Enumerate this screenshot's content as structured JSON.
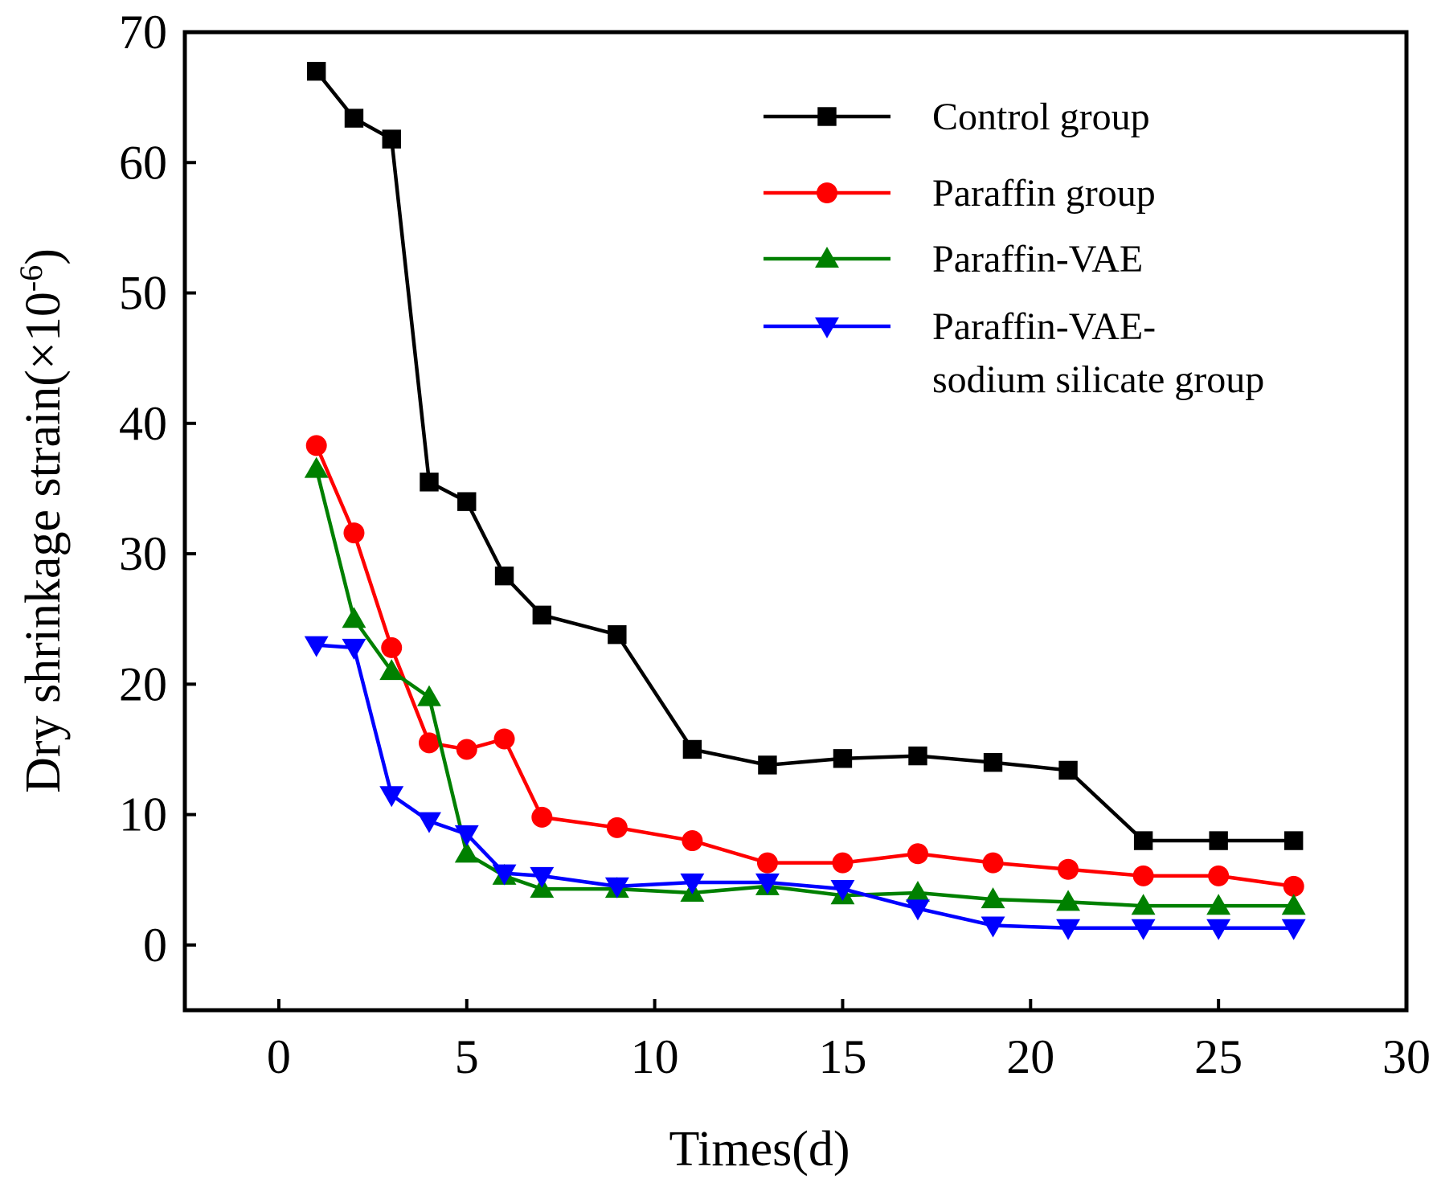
{
  "chart_data": {
    "type": "line",
    "title": "",
    "xlabel": "Times(d)",
    "ylabel_main": "Dry shrinkage strain(×10",
    "ylabel_exponent": "-6",
    "ylabel_close": ")",
    "xlim": [
      -2.5,
      30
    ],
    "ylim": [
      -5,
      70
    ],
    "xticks": [
      0,
      5,
      10,
      15,
      20,
      25,
      30
    ],
    "yticks": [
      0,
      10,
      20,
      30,
      40,
      50,
      60,
      70
    ],
    "legend_position": "top-right",
    "series": [
      {
        "name": "Control group",
        "legend_lines": [
          "Control group"
        ],
        "color": "#000000",
        "marker": "square",
        "x": [
          1,
          2,
          3,
          4,
          5,
          6,
          7,
          9,
          11,
          13,
          15,
          17,
          19,
          21,
          23,
          25,
          27
        ],
        "values": [
          67,
          63.4,
          61.8,
          35.5,
          34,
          28.3,
          25.3,
          23.8,
          15,
          13.8,
          14.3,
          14.5,
          14,
          13.4,
          8,
          8,
          8
        ]
      },
      {
        "name": "Paraffin group",
        "legend_lines": [
          "Paraffin group"
        ],
        "color": "#ff0000",
        "marker": "circle",
        "x": [
          1,
          2,
          3,
          4,
          5,
          6,
          7,
          9,
          11,
          13,
          15,
          17,
          19,
          21,
          23,
          25,
          27
        ],
        "values": [
          38.3,
          31.6,
          22.8,
          15.5,
          15,
          15.8,
          9.8,
          9,
          8,
          6.3,
          6.3,
          7,
          6.3,
          5.8,
          5.3,
          5.3,
          4.5
        ]
      },
      {
        "name": "Paraffin-VAE",
        "legend_lines": [
          "Paraffin-VAE"
        ],
        "color": "#008000",
        "marker": "triangle-up",
        "x": [
          1,
          2,
          3,
          4,
          5,
          6,
          7,
          9,
          11,
          13,
          15,
          17,
          19,
          21,
          23,
          25,
          27
        ],
        "values": [
          36.5,
          25,
          21,
          19,
          7,
          5.3,
          4.3,
          4.3,
          4,
          4.5,
          3.8,
          4,
          3.5,
          3.3,
          3,
          3,
          3
        ]
      },
      {
        "name": "Paraffin-VAE-sodium silicate group",
        "legend_lines": [
          "Paraffin-VAE-",
          "sodium silicate group"
        ],
        "color": "#0000ff",
        "marker": "triangle-down",
        "x": [
          1,
          2,
          3,
          4,
          5,
          6,
          7,
          9,
          11,
          13,
          15,
          17,
          19,
          21,
          23,
          25,
          27
        ],
        "values": [
          23,
          22.8,
          11.5,
          9.5,
          8.5,
          5.5,
          5.3,
          4.5,
          4.8,
          4.8,
          4.3,
          2.8,
          1.5,
          1.3,
          1.3,
          1.3,
          1.3
        ]
      }
    ]
  }
}
